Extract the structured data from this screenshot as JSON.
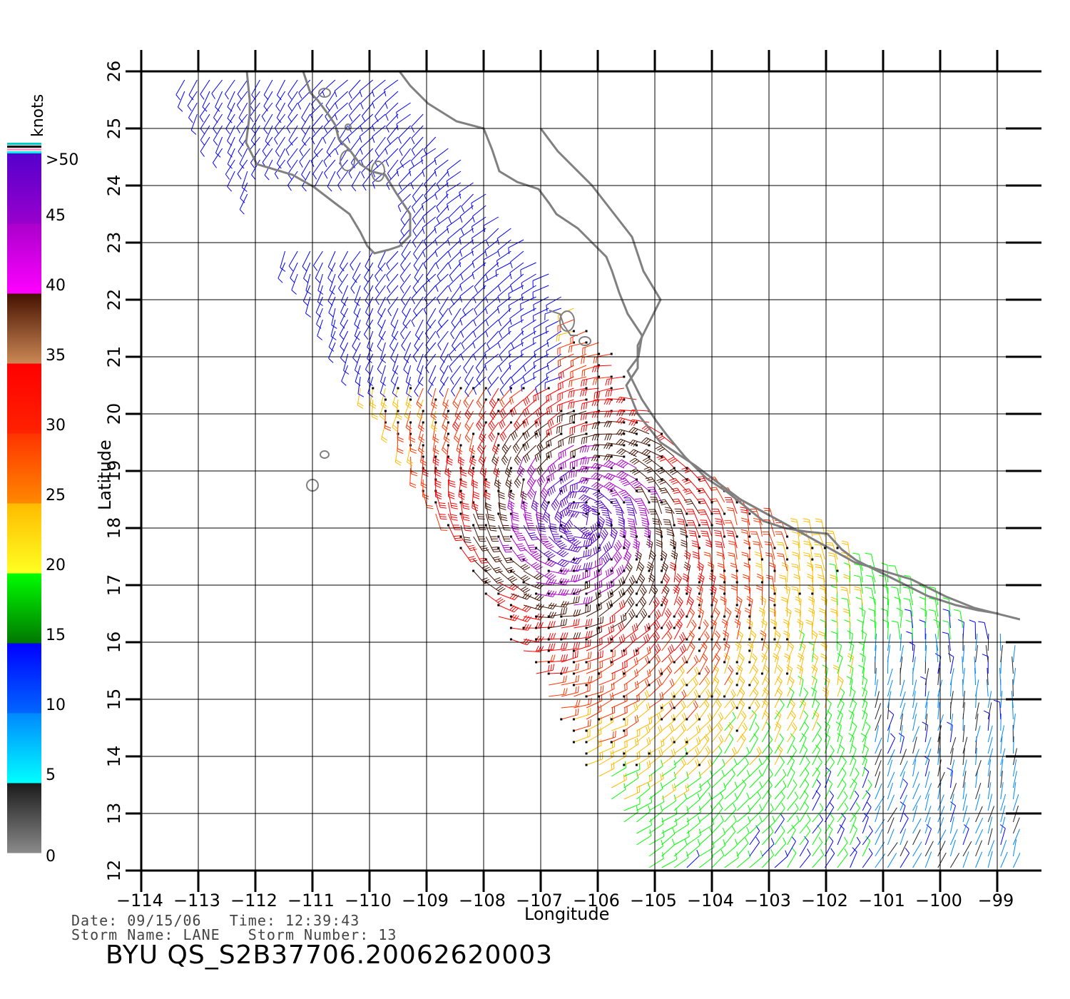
{
  "map": {
    "lon_range": [
      -114,
      -98.6
    ],
    "lat_range": [
      12,
      26
    ],
    "lon_ticks": [
      "-114",
      "-113",
      "-112",
      "-111",
      "-110",
      "-109",
      "-108",
      "-107",
      "-106",
      "-105",
      "-104",
      "-103",
      "-102",
      "-101",
      "-100",
      "-99"
    ],
    "lat_ticks": [
      "12",
      "13",
      "14",
      "15",
      "16",
      "17",
      "18",
      "19",
      "20",
      "21",
      "22",
      "23",
      "24",
      "25",
      "26"
    ],
    "xlabel": "Longitude",
    "ylabel": "Latitude",
    "grid": true,
    "storm_center": {
      "lon": -106.3,
      "lat": 18.1
    },
    "colors": {
      "land": "#808080",
      "grid": "#000000"
    }
  },
  "colorbar": {
    "unit": "knots",
    "labels": [
      "0",
      "5",
      "10",
      "15",
      "20",
      "25",
      "30",
      "35",
      "40",
      "45",
      ">50"
    ],
    "segments": [
      {
        "from": 0,
        "to": 5,
        "top": "#1a1a1a",
        "bottom": "#8a8a8a"
      },
      {
        "from": 5,
        "to": 10,
        "top": "#0088ff",
        "bottom": "#00ffff"
      },
      {
        "from": 10,
        "to": 15,
        "top": "#0000ff",
        "bottom": "#0066ff"
      },
      {
        "from": 15,
        "to": 20,
        "top": "#00ff00",
        "bottom": "#007700"
      },
      {
        "from": 20,
        "to": 25,
        "top": "#ffbb00",
        "bottom": "#ffff22"
      },
      {
        "from": 25,
        "to": 30,
        "top": "#ff3300",
        "bottom": "#ff8800"
      },
      {
        "from": 30,
        "to": 35,
        "top": "#ff0000",
        "bottom": "#ff2200"
      },
      {
        "from": 35,
        "to": 40,
        "top": "#441100",
        "bottom": "#cc8855"
      },
      {
        "from": 40,
        "to": 45,
        "top": "#aa00cc",
        "bottom": "#ff00ff"
      },
      {
        "from": 45,
        "to": 50,
        "top": "#5500cc",
        "bottom": "#9900cc"
      }
    ]
  },
  "info": {
    "date_line": "Date: 09/15/06   Time: 12:39:43",
    "storm_line": "Storm Name: LANE   Storm Number: 13",
    "title": "BYU  QS_S2B37706.20062620003"
  }
}
